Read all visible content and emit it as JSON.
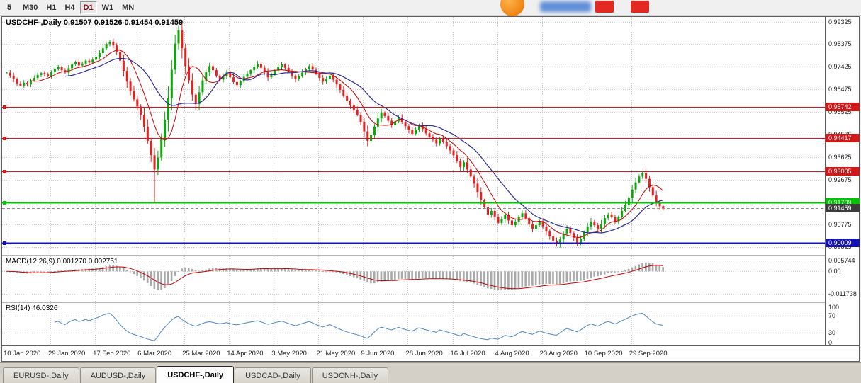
{
  "toolbar": {
    "timeframes": [
      "5",
      "M30",
      "H1",
      "H4",
      "D1",
      "W1",
      "MN"
    ],
    "active_timeframe": "D1"
  },
  "main_chart": {
    "title": "USDCHF-,Daily",
    "ohlc_display": "0.91507 0.91526 0.91454 0.91459",
    "price_axis_labels": [
      "0.99325",
      "0.98375",
      "0.97425",
      "0.96475",
      "0.95525",
      "0.94575",
      "0.93625",
      "0.92675",
      "0.91725",
      "0.90775",
      "0.89825"
    ],
    "current_price_label": "0.91459"
  },
  "indicators": {
    "macd": {
      "label": "MACD(12,26,9) 0.001270 0.002751",
      "axis_labels": [
        "0.005744",
        "0.00",
        "-0.011738"
      ],
      "axis_values": [
        0.005744,
        0,
        -0.011738
      ]
    },
    "rsi": {
      "label": "RSI(14) 46.0326",
      "axis_labels": [
        "100",
        "70",
        "30",
        "0"
      ],
      "axis_values": [
        100,
        70,
        30,
        0
      ]
    }
  },
  "time_axis": [
    "10 Jan 2020",
    "29 Jan 2020",
    "17 Feb 2020",
    "6 Mar 2020",
    "25 Mar 2020",
    "14 Apr 2020",
    "3 May 2020",
    "21 May 2020",
    "9 Jun 2020",
    "28 Jun 2020",
    "16 Jul 2020",
    "4 Aug 2020",
    "23 Aug 2020",
    "10 Sep 2020",
    "29 Sep 2020"
  ],
  "tabs": {
    "items": [
      "EURUSD-,Daily",
      "AUDUSD-,Daily",
      "USDCHF-,Daily",
      "USDCAD-,Daily",
      "USDCNH-,Daily"
    ],
    "active": "USDCHF-,Daily"
  },
  "chart_data": {
    "type": "candlestick",
    "symbol": "USDCHF-,Daily",
    "ylim": [
      0.895,
      0.9952
    ],
    "tick_every": 13,
    "closes": [
      0.9718,
      0.9705,
      0.969,
      0.9672,
      0.9663,
      0.9675,
      0.9668,
      0.9684,
      0.9695,
      0.9708,
      0.9716,
      0.971,
      0.9703,
      0.9722,
      0.9734,
      0.9741,
      0.9728,
      0.9718,
      0.9736,
      0.9752,
      0.9761,
      0.9748,
      0.9756,
      0.9768,
      0.976,
      0.9772,
      0.9785,
      0.98,
      0.982,
      0.9838,
      0.9848,
      0.9832,
      0.9805,
      0.9768,
      0.9725,
      0.968,
      0.964,
      0.9605,
      0.9575,
      0.954,
      0.949,
      0.943,
      0.937,
      0.931,
      0.936,
      0.944,
      0.952,
      0.961,
      0.973,
      0.984,
      0.9895,
      0.982,
      0.9745,
      0.9685,
      0.9625,
      0.9585,
      0.9635,
      0.9685,
      0.972,
      0.9745,
      0.9728,
      0.9705,
      0.9688,
      0.9702,
      0.9718,
      0.9698,
      0.9678,
      0.9665,
      0.9682,
      0.97,
      0.9714,
      0.9728,
      0.9742,
      0.9755,
      0.9738,
      0.972,
      0.9698,
      0.971,
      0.9726,
      0.974,
      0.9752,
      0.9738,
      0.9722,
      0.9705,
      0.969,
      0.9702,
      0.9718,
      0.9732,
      0.9745,
      0.973,
      0.9712,
      0.9695,
      0.968,
      0.9692,
      0.9705,
      0.9688,
      0.9668,
      0.9645,
      0.962,
      0.96,
      0.958,
      0.956,
      0.954,
      0.951,
      0.947,
      0.943,
      0.9455,
      0.949,
      0.9525,
      0.955,
      0.9535,
      0.9515,
      0.9498,
      0.9512,
      0.9528,
      0.951,
      0.9492,
      0.9475,
      0.946,
      0.9478,
      0.9495,
      0.948,
      0.9462,
      0.9448,
      0.9435,
      0.942,
      0.944,
      0.9425,
      0.9408,
      0.939,
      0.937,
      0.9345,
      0.932,
      0.934,
      0.931,
      0.928,
      0.925,
      0.9215,
      0.918,
      0.915,
      0.912,
      0.9135,
      0.911,
      0.9085,
      0.91,
      0.912,
      0.9095,
      0.9075,
      0.909,
      0.911,
      0.9125,
      0.9105,
      0.908,
      0.906,
      0.9075,
      0.9092,
      0.907,
      0.9048,
      0.9028,
      0.901,
      0.8995,
      0.9015,
      0.904,
      0.906,
      0.9042,
      0.9022,
      0.9,
      0.9018,
      0.9045,
      0.907,
      0.909,
      0.9075,
      0.9058,
      0.908,
      0.9105,
      0.912,
      0.9108,
      0.9092,
      0.911,
      0.9135,
      0.916,
      0.919,
      0.9225,
      0.9255,
      0.928,
      0.9295,
      0.927,
      0.9235,
      0.92,
      0.917,
      0.9155,
      0.91459
    ],
    "wick_overrides": {
      "43": {
        "low": 0.9172
      },
      "50": {
        "high": 0.9915
      },
      "160": {
        "low": 0.8985
      },
      "166": {
        "low": 0.8988
      }
    },
    "levels": [
      {
        "value": 0.95742,
        "label": "0.95742",
        "color": "#d01818",
        "width": 1
      },
      {
        "value": 0.94417,
        "label": "0.94417",
        "color": "#d01818",
        "width": 1
      },
      {
        "value": 0.93005,
        "label": "0.93005",
        "color": "#d01818",
        "width": 1
      },
      {
        "value": 0.91709,
        "label": "0.91709",
        "color": "#00c400",
        "width": 2
      },
      {
        "value": 0.90009,
        "label": "0.90009",
        "color": "#1414b4",
        "width": 2
      }
    ],
    "current_price": 0.91459,
    "ma_fast_period": 8,
    "ma_slow_period": 18,
    "macd_params": [
      12,
      26,
      9
    ],
    "macd_ylim": [
      -0.016,
      0.008
    ],
    "rsi_period": 14,
    "rsi_ylim": [
      0,
      100
    ],
    "colors": {
      "up": "#0da50d",
      "down": "#e42222",
      "ma_fast": "#cc0000",
      "ma_slow": "#2b2b9e",
      "grid": "#c9c9c9",
      "macd_hist": "#a9a9a9",
      "macd_signal": "#cc0000",
      "rsi": "#4a86c8",
      "current_price_box": "#3c3c3c"
    }
  }
}
